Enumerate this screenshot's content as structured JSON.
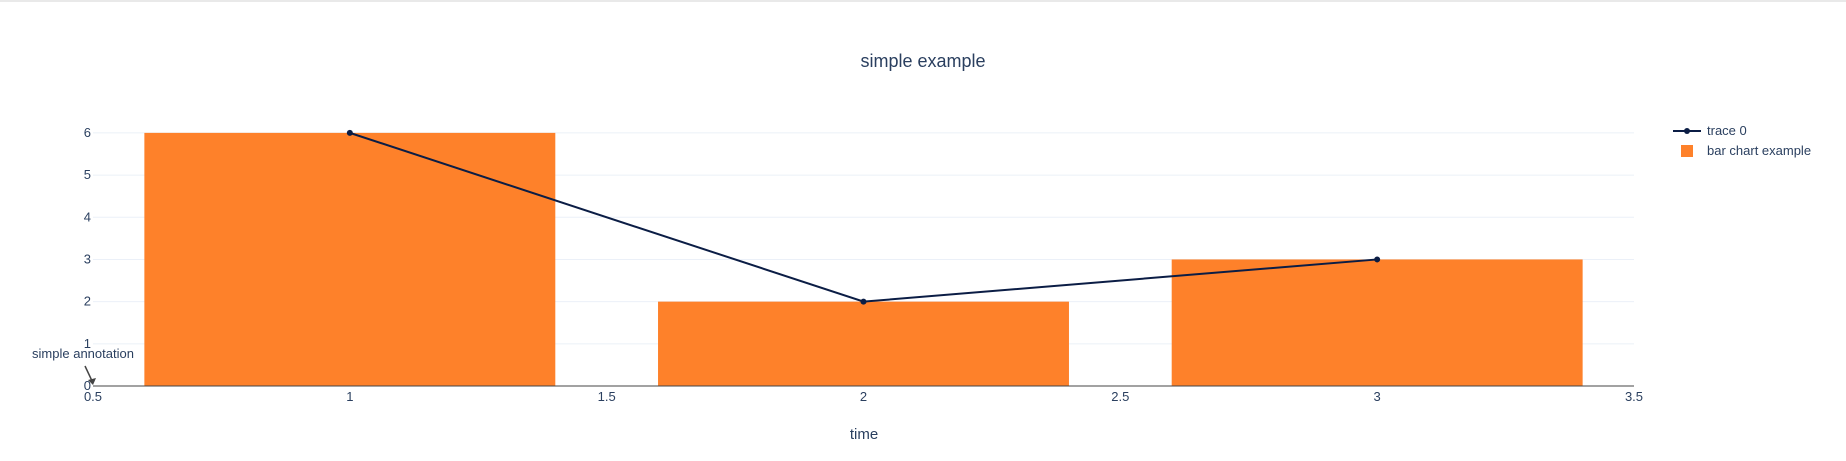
{
  "chart_data": {
    "type": "bar",
    "title": "simple example",
    "xlabel": "time",
    "ylabel": "",
    "xlim": [
      0.5,
      3.5
    ],
    "ylim": [
      0,
      6.4
    ],
    "x_ticks": [
      "0.5",
      "1",
      "1.5",
      "2",
      "2.5",
      "3",
      "3.5"
    ],
    "y_ticks": [
      "0",
      "1",
      "2",
      "3",
      "4",
      "5",
      "6"
    ],
    "grid": true,
    "legend_position": "top-right",
    "series": [
      {
        "name": "trace 0",
        "type": "line",
        "markers": true,
        "color": "#0b1d45",
        "x": [
          1,
          2,
          3
        ],
        "y": [
          6,
          2,
          3
        ]
      },
      {
        "name": "bar chart example",
        "type": "bar",
        "color": "#fe812a",
        "x": [
          1,
          2,
          3
        ],
        "y": [
          6,
          2,
          3
        ],
        "bar_width": 0.8
      }
    ],
    "annotations": [
      {
        "text": "simple annotation",
        "x": 0.5,
        "y": 0,
        "arrow": true
      }
    ]
  }
}
